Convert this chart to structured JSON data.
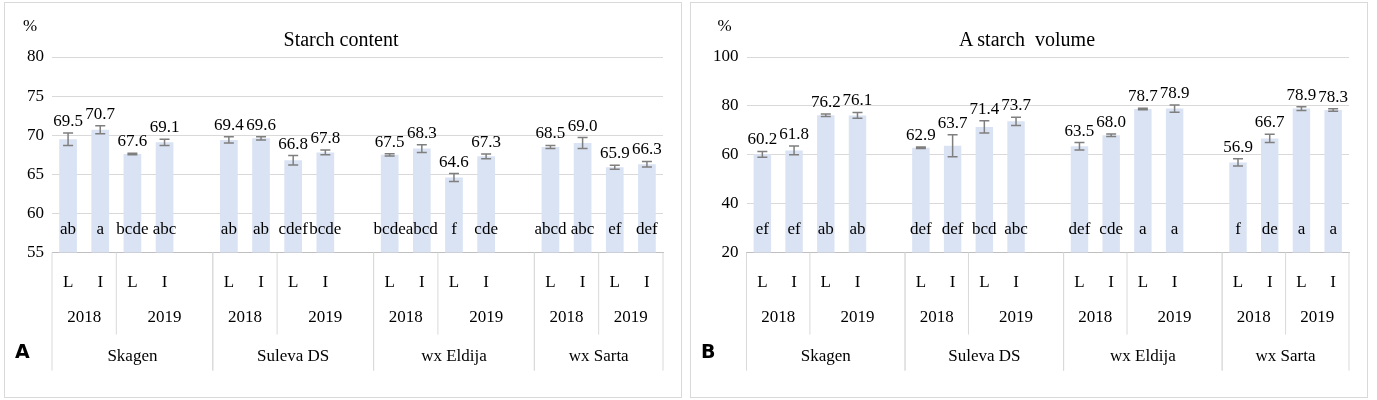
{
  "chart_data": [
    {
      "type": "bar",
      "title": "Starch content",
      "ylabel": "%",
      "color": "#dae3f3",
      "grid": "y",
      "categories": [
        "L",
        "I",
        "L",
        "I",
        null,
        "L",
        "I",
        "L",
        "I",
        null,
        "L",
        "I",
        "L",
        "I",
        null,
        "L",
        "I",
        "L",
        "I"
      ],
      "values": [
        69.5,
        70.7,
        67.6,
        69.1,
        null,
        69.4,
        69.6,
        66.8,
        67.8,
        null,
        67.5,
        68.3,
        64.6,
        67.3,
        null,
        68.5,
        69.0,
        65.9,
        66.3
      ],
      "value_labels": [
        "69.5",
        "70.7",
        "67.6",
        "69.1",
        null,
        "69.4",
        "69.6",
        "66.8",
        "67.8",
        null,
        "67.5",
        "68.3",
        "64.6",
        "67.3",
        null,
        "68.5",
        "69.0",
        "65.9",
        "66.3"
      ],
      "errors": [
        0.8,
        0.5,
        0.1,
        0.4,
        null,
        0.4,
        0.2,
        0.6,
        0.3,
        null,
        0.15,
        0.5,
        0.5,
        0.3,
        null,
        0.2,
        0.7,
        0.25,
        0.35
      ],
      "ylim": [
        55,
        80
      ],
      "yticks": [
        55,
        60,
        65,
        70,
        75,
        80
      ],
      "annotations": [
        "A",
        "2018",
        "2019",
        "Skagen",
        "2018",
        "2019",
        "Suleva DS",
        "2018",
        "2019",
        "wx Eldija",
        "2018",
        "2019",
        "wx Sarta",
        "ab",
        "a",
        "bcde",
        "abc",
        "ab",
        "ab",
        "cdef",
        "bcde",
        "bcde",
        "abcd",
        "f",
        "cde",
        "abcd",
        "abc",
        "ef",
        "def"
      ]
    },
    {
      "type": "bar",
      "title": "A starch  volume",
      "ylabel": "%",
      "color": "#dae3f3",
      "grid": "y",
      "categories": [
        "L",
        "I",
        "L",
        "I",
        null,
        "L",
        "I",
        "L",
        "I",
        null,
        "L",
        "I",
        "L",
        "I",
        null,
        "L",
        "I",
        "L",
        "I"
      ],
      "values": [
        60.2,
        61.8,
        76.2,
        76.1,
        null,
        62.9,
        63.7,
        71.4,
        73.7,
        null,
        63.5,
        68.0,
        78.7,
        78.9,
        null,
        56.9,
        66.7,
        78.9,
        78.3
      ],
      "value_labels": [
        "60.2",
        "61.8",
        "76.2",
        "76.1",
        null,
        "62.9",
        "63.7",
        "71.4",
        "73.7",
        null,
        "63.5",
        "68.0",
        "78.7",
        "78.9",
        null,
        "56.9",
        "66.7",
        "78.9",
        "78.3"
      ],
      "errors": [
        1.2,
        1.8,
        0.5,
        1.2,
        null,
        0.3,
        4.5,
        2.5,
        1.7,
        null,
        1.5,
        0.5,
        0.3,
        1.5,
        null,
        1.5,
        1.7,
        0.8,
        0.5
      ],
      "ylim": [
        20,
        100
      ],
      "yticks": [
        20,
        40,
        60,
        80,
        100
      ],
      "annotations": [
        "B",
        "2018",
        "2019",
        "Skagen",
        "2018",
        "2019",
        "Suleva DS",
        "2018",
        "2019",
        "wx Eldija",
        "2018",
        "2019",
        "wx Sarta",
        "ef",
        "ef",
        "ab",
        "ab",
        "def",
        "def",
        "bcd",
        "abc",
        "def",
        "cde",
        "a",
        "a",
        "f",
        "de",
        "a",
        "a"
      ]
    }
  ]
}
